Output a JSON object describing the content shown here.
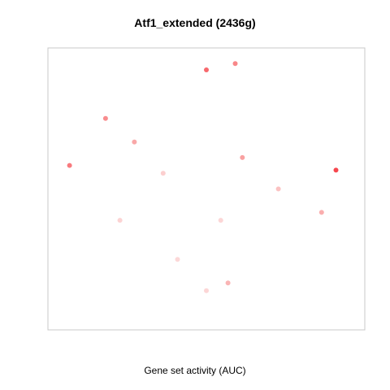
{
  "chart_data": {
    "type": "scatter",
    "title": "Atf1_extended (2436g)",
    "xlabel": "Gene set activity (AUC)",
    "ylabel": "",
    "grid": false,
    "legend": "none",
    "axes_ticks": false,
    "color_scale": {
      "low": "#fde3e3",
      "mid": "#f9a1a1",
      "high": "#f5202b"
    },
    "series": [
      {
        "points": [
          {
            "x": 0.0,
            "y": 0.66,
            "auc": 0.72
          },
          {
            "x": 0.2,
            "y": 0.7,
            "auc": 0.6
          },
          {
            "x": -0.7,
            "y": 0.35,
            "auc": 0.58
          },
          {
            "x": -0.95,
            "y": 0.05,
            "auc": 0.65
          },
          {
            "x": -0.5,
            "y": 0.2,
            "auc": 0.45
          },
          {
            "x": -0.3,
            "y": 0.0,
            "auc": 0.15
          },
          {
            "x": -0.6,
            "y": -0.3,
            "auc": 0.12
          },
          {
            "x": -0.2,
            "y": -0.55,
            "auc": 0.08
          },
          {
            "x": 0.0,
            "y": -0.75,
            "auc": 0.1
          },
          {
            "x": 0.15,
            "y": -0.7,
            "auc": 0.35
          },
          {
            "x": 0.25,
            "y": 0.1,
            "auc": 0.5
          },
          {
            "x": 0.5,
            "y": -0.1,
            "auc": 0.25
          },
          {
            "x": 0.9,
            "y": 0.02,
            "auc": 0.85
          },
          {
            "x": 0.8,
            "y": -0.25,
            "auc": 0.4
          },
          {
            "x": 0.1,
            "y": -0.3,
            "auc": 0.1
          }
        ]
      }
    ],
    "xlim": [
      -1.1,
      1.1
    ],
    "ylim": [
      -1.0,
      0.8
    ]
  }
}
